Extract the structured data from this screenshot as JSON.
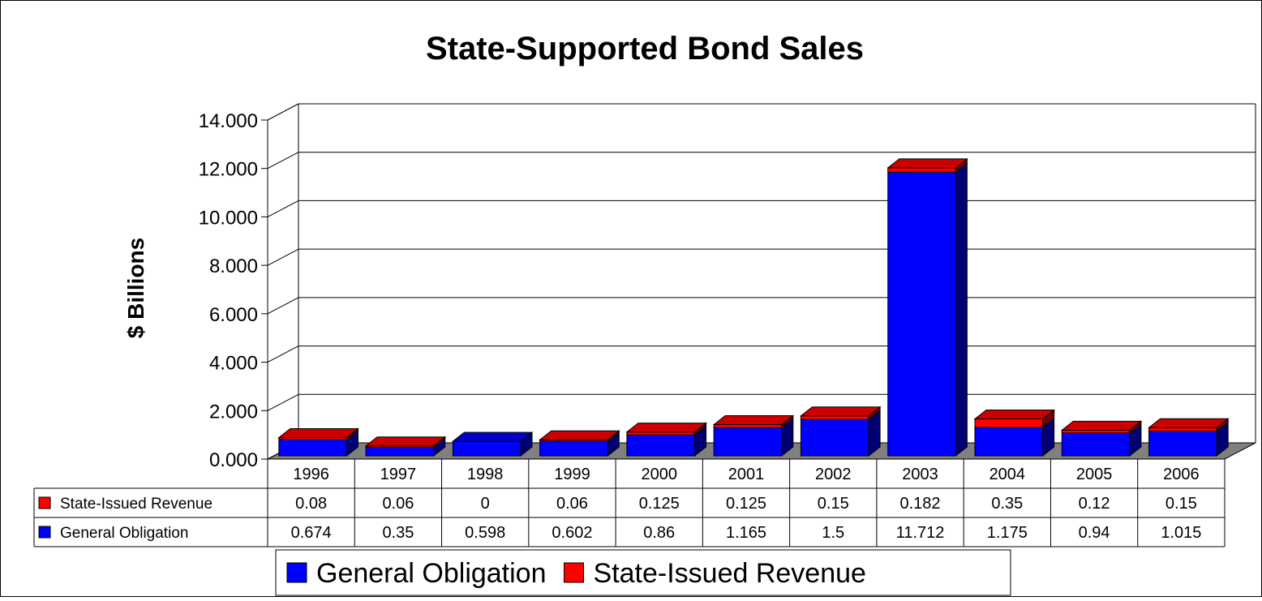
{
  "chart_data": {
    "type": "bar",
    "stacked": true,
    "three_d": true,
    "title": "State-Supported Bond Sales",
    "ylabel": "$ Billions",
    "xlabel": "",
    "ylim": [
      0,
      14
    ],
    "yticks": [
      0,
      2,
      4,
      6,
      8,
      10,
      12,
      14
    ],
    "ytick_labels": [
      "0.000",
      "2.000",
      "4.000",
      "6.000",
      "8.000",
      "10.000",
      "12.000",
      "14.000"
    ],
    "grid": true,
    "categories": [
      "1996",
      "1997",
      "1998",
      "1999",
      "2000",
      "2001",
      "2002",
      "2003",
      "2004",
      "2005",
      "2006"
    ],
    "series": [
      {
        "name": "General Obligation",
        "color": "#0000FF",
        "values": [
          0.674,
          0.35,
          0.598,
          0.602,
          0.86,
          1.165,
          1.5,
          11.712,
          1.175,
          0.94,
          1.015
        ],
        "labels": [
          "0.674",
          "0.35",
          "0.598",
          "0.602",
          "0.86",
          "1.165",
          "1.5",
          "11.712",
          "1.175",
          "0.94",
          "1.015"
        ]
      },
      {
        "name": "State-Issued Revenue",
        "color": "#FF0000",
        "values": [
          0.08,
          0.06,
          0,
          0.06,
          0.125,
          0.125,
          0.15,
          0.182,
          0.35,
          0.12,
          0.15
        ],
        "labels": [
          "0.08",
          "0.06",
          "0",
          "0.06",
          "0.125",
          "0.125",
          "0.15",
          "0.182",
          "0.35",
          "0.12",
          "0.15"
        ]
      }
    ],
    "data_table": {
      "rows": [
        "State-Issued Revenue",
        "General Obligation"
      ]
    },
    "legend": {
      "position": "bottom",
      "entries": [
        "General Obligation",
        "State-Issued Revenue"
      ]
    }
  }
}
